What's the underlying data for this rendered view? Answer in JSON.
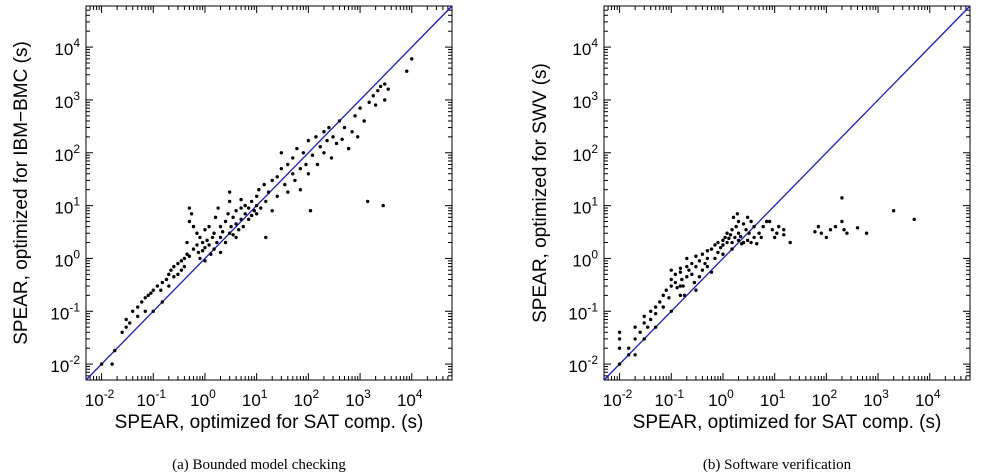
{
  "chart_data": [
    {
      "type": "scatter",
      "caption": "(a) Bounded model checking",
      "xlabel": "SPEAR, optimized for SAT comp. (s)",
      "ylabel": "SPEAR, optimized for IBM−BMC (s)",
      "scale": "log",
      "xlim": [
        0.005,
        60000
      ],
      "ylim": [
        0.005,
        60000
      ],
      "tick_exponents": [
        -2,
        -1,
        0,
        1,
        2,
        3,
        4
      ],
      "tick_base": "10",
      "diagonal": true,
      "grid": false,
      "series": [
        {
          "points": [
            [
              0.01,
              0.01
            ],
            [
              0.018,
              0.018
            ],
            [
              0.016,
              0.01
            ],
            [
              0.025,
              0.04
            ],
            [
              0.03,
              0.05
            ],
            [
              0.03,
              0.07
            ],
            [
              0.035,
              0.06
            ],
            [
              0.04,
              0.1
            ],
            [
              0.05,
              0.12
            ],
            [
              0.05,
              0.08
            ],
            [
              0.06,
              0.15
            ],
            [
              0.07,
              0.18
            ],
            [
              0.07,
              0.1
            ],
            [
              0.08,
              0.2
            ],
            [
              0.09,
              0.22
            ],
            [
              0.1,
              0.25
            ],
            [
              0.1,
              0.1
            ],
            [
              0.12,
              0.3
            ],
            [
              0.14,
              0.25
            ],
            [
              0.15,
              0.35
            ],
            [
              0.15,
              0.15
            ],
            [
              0.18,
              0.4
            ],
            [
              0.2,
              0.5
            ],
            [
              0.2,
              0.3
            ],
            [
              0.22,
              0.6
            ],
            [
              0.25,
              0.7
            ],
            [
              0.25,
              0.45
            ],
            [
              0.3,
              0.8
            ],
            [
              0.3,
              0.5
            ],
            [
              0.35,
              0.9
            ],
            [
              0.35,
              0.6
            ],
            [
              0.4,
              1.0
            ],
            [
              0.4,
              0.7
            ],
            [
              0.45,
              2.0
            ],
            [
              0.45,
              1.2
            ],
            [
              0.5,
              1.1
            ],
            [
              0.5,
              5.0
            ],
            [
              0.5,
              9.0
            ],
            [
              0.55,
              7.0
            ],
            [
              0.6,
              4.0
            ],
            [
              0.6,
              1.5
            ],
            [
              0.7,
              1.8
            ],
            [
              0.7,
              3.0
            ],
            [
              0.75,
              1.3
            ],
            [
              0.8,
              2.5
            ],
            [
              0.8,
              1.0
            ],
            [
              0.9,
              2.0
            ],
            [
              0.9,
              1.4
            ],
            [
              1.0,
              1.6
            ],
            [
              1.0,
              3.5
            ],
            [
              1.0,
              0.9
            ],
            [
              1.1,
              2.2
            ],
            [
              1.2,
              1.8
            ],
            [
              1.2,
              4.0
            ],
            [
              1.3,
              1.2
            ],
            [
              1.4,
              2.5
            ],
            [
              1.5,
              3.0
            ],
            [
              1.5,
              1.5
            ],
            [
              1.6,
              6.0
            ],
            [
              1.7,
              2.0
            ],
            [
              1.8,
              9.0
            ],
            [
              2.0,
              2.5
            ],
            [
              2.0,
              4.0
            ],
            [
              2.0,
              1.3
            ],
            [
              2.2,
              3.2
            ],
            [
              2.5,
              5.0
            ],
            [
              2.5,
              2.0
            ],
            [
              2.8,
              7.0
            ],
            [
              3.0,
              3.0
            ],
            [
              3.0,
              12.0
            ],
            [
              3.0,
              18.0
            ],
            [
              3.2,
              4.0
            ],
            [
              3.5,
              2.8
            ],
            [
              3.5,
              6.0
            ],
            [
              4.0,
              8.0
            ],
            [
              4.0,
              4.5
            ],
            [
              4.5,
              3.5
            ],
            [
              5.0,
              9.0
            ],
            [
              5.0,
              5.5
            ],
            [
              5.0,
              13.0
            ],
            [
              5.5,
              4.0
            ],
            [
              6.0,
              7.0
            ],
            [
              6.0,
              10.0
            ],
            [
              7.0,
              5.5
            ],
            [
              7.0,
              9.0
            ],
            [
              8.0,
              12.0
            ],
            [
              8.0,
              6.5
            ],
            [
              9.0,
              8.0
            ],
            [
              10.0,
              10.0
            ],
            [
              10.0,
              15.0
            ],
            [
              10.0,
              7.0
            ],
            [
              11.0,
              20.0
            ],
            [
              12.0,
              9.0
            ],
            [
              14.0,
              25.0
            ],
            [
              15.0,
              12.0
            ],
            [
              15.0,
              2.5
            ],
            [
              17.0,
              18.0
            ],
            [
              20.0,
              30.0
            ],
            [
              20.0,
              8.0
            ],
            [
              25.0,
              35.0
            ],
            [
              25.0,
              15.0
            ],
            [
              30.0,
              50.0
            ],
            [
              30.0,
              100.0
            ],
            [
              35.0,
              25.0
            ],
            [
              40.0,
              60.0
            ],
            [
              40.0,
              18.0
            ],
            [
              50.0,
              80.0
            ],
            [
              50.0,
              40.0
            ],
            [
              55.0,
              30.0
            ],
            [
              60.0,
              120.0
            ],
            [
              70.0,
              50.0
            ],
            [
              70.0,
              20.0
            ],
            [
              80.0,
              100.0
            ],
            [
              90.0,
              60.0
            ],
            [
              100.0,
              170.0
            ],
            [
              100.0,
              40.0
            ],
            [
              110.0,
              8.0
            ],
            [
              120.0,
              90.0
            ],
            [
              140.0,
              200.0
            ],
            [
              150.0,
              60.0
            ],
            [
              170.0,
              130.0
            ],
            [
              200.0,
              250.0
            ],
            [
              200.0,
              100.0
            ],
            [
              230.0,
              170.0
            ],
            [
              250.0,
              300.0
            ],
            [
              280.0,
              80.0
            ],
            [
              300.0,
              200.0
            ],
            [
              350.0,
              150.0
            ],
            [
              400.0,
              400.0
            ],
            [
              450.0,
              180.0
            ],
            [
              500.0,
              300.0
            ],
            [
              600.0,
              120.0
            ],
            [
              700.0,
              250.0
            ],
            [
              800.0,
              500.0
            ],
            [
              900.0,
              200.0
            ],
            [
              1000.0,
              700.0
            ],
            [
              1200.0,
              400.0
            ],
            [
              1400.0,
              12.0
            ],
            [
              1500.0,
              900.0
            ],
            [
              1800.0,
              1200.0
            ],
            [
              2000.0,
              800.0
            ],
            [
              2200.0,
              1500.0
            ],
            [
              2500.0,
              1800.0
            ],
            [
              2800.0,
              10.0
            ],
            [
              3000.0,
              1000.0
            ],
            [
              3000.0,
              2000.0
            ],
            [
              3500.0,
              1600.0
            ],
            [
              8000.0,
              3500.0
            ],
            [
              10000.0,
              6000.0
            ],
            [
              4.0,
              2.5
            ]
          ]
        }
      ]
    },
    {
      "type": "scatter",
      "caption": "(b) Software verification",
      "xlabel": "SPEAR, optimized for SAT comp. (s)",
      "ylabel": "SPEAR, optimized for SWV (s)",
      "scale": "log",
      "xlim": [
        0.005,
        60000
      ],
      "ylim": [
        0.005,
        60000
      ],
      "tick_exponents": [
        -2,
        -1,
        0,
        1,
        2,
        3,
        4
      ],
      "tick_base": "10",
      "diagonal": true,
      "grid": false,
      "series": [
        {
          "points": [
            [
              0.01,
              0.01
            ],
            [
              0.01,
              0.02
            ],
            [
              0.01,
              0.03
            ],
            [
              0.01,
              0.04
            ],
            [
              0.015,
              0.02
            ],
            [
              0.02,
              0.03
            ],
            [
              0.02,
              0.05
            ],
            [
              0.02,
              0.015
            ],
            [
              0.025,
              0.04
            ],
            [
              0.03,
              0.06
            ],
            [
              0.03,
              0.08
            ],
            [
              0.03,
              0.03
            ],
            [
              0.035,
              0.05
            ],
            [
              0.04,
              0.1
            ],
            [
              0.04,
              0.07
            ],
            [
              0.05,
              0.12
            ],
            [
              0.05,
              0.09
            ],
            [
              0.06,
              0.15
            ],
            [
              0.07,
              0.2
            ],
            [
              0.07,
              0.12
            ],
            [
              0.08,
              0.25
            ],
            [
              0.09,
              0.18
            ],
            [
              0.1,
              0.3
            ],
            [
              0.1,
              0.4
            ],
            [
              0.1,
              0.6
            ],
            [
              0.12,
              0.35
            ],
            [
              0.12,
              0.5
            ],
            [
              0.13,
              0.28
            ],
            [
              0.15,
              0.3
            ],
            [
              0.15,
              0.55
            ],
            [
              0.15,
              0.65
            ],
            [
              0.15,
              0.2
            ],
            [
              0.16,
              0.4
            ],
            [
              0.17,
              0.3
            ],
            [
              0.18,
              0.2
            ],
            [
              0.2,
              0.7
            ],
            [
              0.2,
              0.45
            ],
            [
              0.2,
              1.0
            ],
            [
              0.22,
              0.6
            ],
            [
              0.25,
              0.8
            ],
            [
              0.25,
              0.5
            ],
            [
              0.28,
              0.35
            ],
            [
              0.3,
              1.1
            ],
            [
              0.3,
              0.7
            ],
            [
              0.35,
              0.9
            ],
            [
              0.35,
              0.45
            ],
            [
              0.4,
              1.2
            ],
            [
              0.4,
              0.6
            ],
            [
              0.45,
              0.8
            ],
            [
              0.5,
              1.4
            ],
            [
              0.5,
              1.0
            ],
            [
              0.5,
              0.7
            ],
            [
              0.6,
              1.5
            ],
            [
              0.7,
              1.8
            ],
            [
              0.7,
              1.0
            ],
            [
              0.8,
              2.0
            ],
            [
              0.8,
              1.3
            ],
            [
              0.9,
              1.6
            ],
            [
              1.0,
              2.2
            ],
            [
              1.0,
              1.8
            ],
            [
              1.0,
              1.2
            ],
            [
              1.1,
              2.5
            ],
            [
              1.2,
              2.0
            ],
            [
              1.2,
              3.0
            ],
            [
              1.3,
              2.4
            ],
            [
              1.4,
              2.8
            ],
            [
              1.5,
              2.0
            ],
            [
              1.5,
              3.5
            ],
            [
              1.6,
              6.0
            ],
            [
              1.7,
              2.5
            ],
            [
              1.8,
              4.0
            ],
            [
              1.9,
              7.0
            ],
            [
              2.0,
              2.2
            ],
            [
              2.0,
              3.0
            ],
            [
              2.0,
              5.0
            ],
            [
              2.2,
              2.6
            ],
            [
              2.3,
              1.9
            ],
            [
              2.5,
              4.5
            ],
            [
              2.5,
              2.0
            ],
            [
              2.8,
              3.5
            ],
            [
              3.0,
              2.2
            ],
            [
              3.0,
              6.0
            ],
            [
              3.2,
              3.0
            ],
            [
              3.5,
              2.0
            ],
            [
              3.5,
              5.0
            ],
            [
              4.0,
              2.5
            ],
            [
              4.0,
              4.0
            ],
            [
              4.5,
              1.9
            ],
            [
              5.0,
              3.0
            ],
            [
              5.5,
              2.5
            ],
            [
              6.0,
              4.0
            ],
            [
              7.0,
              5.0
            ],
            [
              8.0,
              5.0
            ],
            [
              9.0,
              3.5
            ],
            [
              10.0,
              2.5
            ],
            [
              11.0,
              3.0
            ],
            [
              12.0,
              4.0
            ],
            [
              15.0,
              2.8
            ],
            [
              15.0,
              3.5
            ],
            [
              20.0,
              2.0
            ],
            [
              60.0,
              3.2
            ],
            [
              70.0,
              4.0
            ],
            [
              80.0,
              3.0
            ],
            [
              100.0,
              2.5
            ],
            [
              120.0,
              3.5
            ],
            [
              150.0,
              4.0
            ],
            [
              200.0,
              14.0
            ],
            [
              200.0,
              5.0
            ],
            [
              220.0,
              3.5
            ],
            [
              250.0,
              3.0
            ],
            [
              400.0,
              3.8
            ],
            [
              600.0,
              3.0
            ],
            [
              2000.0,
              8.0
            ],
            [
              5000.0,
              5.5
            ],
            [
              0.015,
              0.015
            ],
            [
              0.3,
              0.25
            ],
            [
              0.6,
              0.55
            ],
            [
              1.5,
              1.5
            ],
            [
              0.1,
              0.1
            ],
            [
              0.05,
              0.05
            ]
          ]
        }
      ]
    }
  ]
}
